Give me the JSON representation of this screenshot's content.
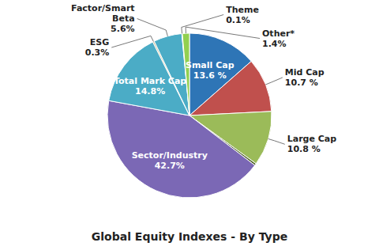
{
  "chart_data": {
    "type": "pie",
    "title": "Global Equity Indexes - By Type",
    "categories": [
      "Small Cap",
      "Mid Cap",
      "Large Cap",
      null,
      "Sector/Industry",
      "Total Mark Cap",
      "ESG",
      "Factor/Smart\nBeta",
      "Theme",
      "Other*"
    ],
    "values": [
      13.6,
      10.7,
      10.8,
      0.4,
      42.7,
      14.8,
      0.3,
      5.6,
      0.1,
      1.4
    ],
    "value_labels": [
      "13.6 %",
      "10.7 %",
      "10.8 %",
      null,
      "42.7%",
      "14.8%",
      "0.3%",
      "5.6%",
      "0.1%",
      "1.4%"
    ],
    "colors": [
      "#2E75B6",
      "#C0504D",
      "#9BBB59",
      "#4F6228",
      "#7B68B5",
      "#4BACC6",
      "#C4BD97",
      "#4BACC6",
      "#B8CCE4",
      "#92D050"
    ],
    "data_labels": true
  }
}
